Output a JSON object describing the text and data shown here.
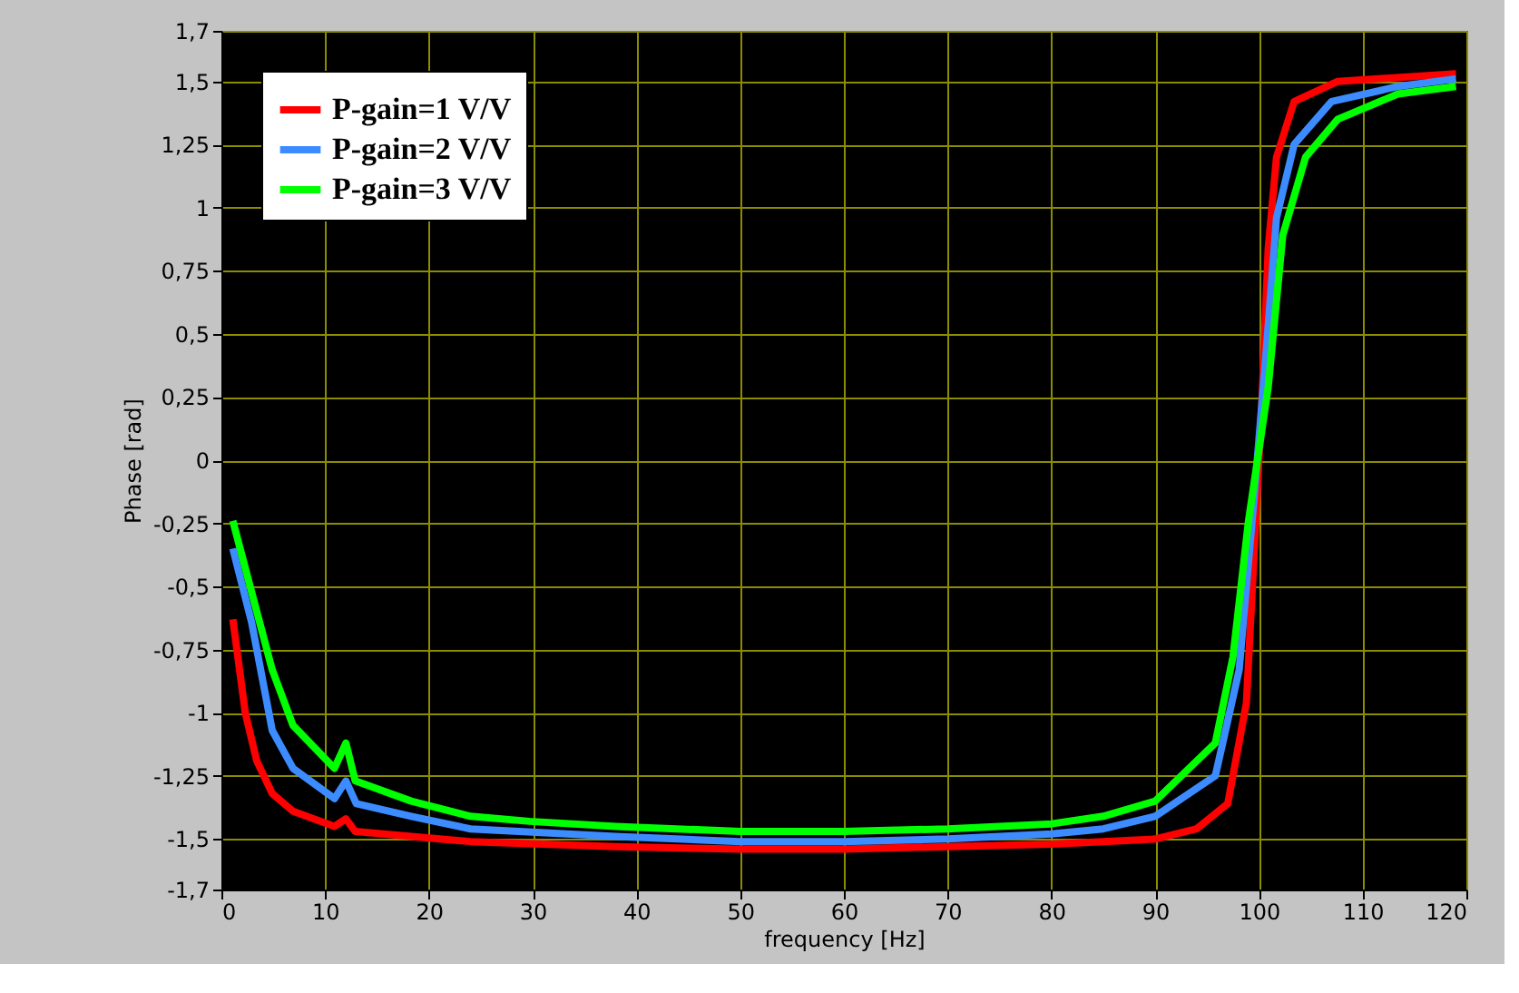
{
  "chart_data": {
    "type": "line",
    "xlabel": "frequency [Hz]",
    "ylabel": "Phase [rad]",
    "xlim": [
      0,
      120
    ],
    "xticks": [
      0,
      10,
      20,
      30,
      40,
      50,
      60,
      70,
      80,
      90,
      100,
      110,
      120
    ],
    "ylim": [
      -1.7,
      1.7
    ],
    "yticks": [
      {
        "value": -1.7,
        "label": "-1,7"
      },
      {
        "value": -1.5,
        "label": "-1,5"
      },
      {
        "value": -1.25,
        "label": "-1,25"
      },
      {
        "value": -1,
        "label": "-1"
      },
      {
        "value": -0.75,
        "label": "-0,75"
      },
      {
        "value": -0.5,
        "label": "-0,5"
      },
      {
        "value": -0.25,
        "label": "-0,25"
      },
      {
        "value": 0,
        "label": "0"
      },
      {
        "value": 0.25,
        "label": "0,25"
      },
      {
        "value": 0.5,
        "label": "0,5"
      },
      {
        "value": 0.75,
        "label": "0,75"
      },
      {
        "value": 1,
        "label": "1"
      },
      {
        "value": 1.25,
        "label": "1,25"
      },
      {
        "value": 1.5,
        "label": "1,5"
      },
      {
        "value": 1.7,
        "label": "1,7"
      }
    ],
    "grid": true,
    "legend": "top left",
    "marker": "none",
    "line_style": "solid",
    "series": [
      {
        "name": "P-gain=1 V/V",
        "color": "#ff0000",
        "x": [
          1.1,
          2.3,
          3.4,
          4.9,
          6.9,
          10.9,
          12,
          12.9,
          18.3,
          24,
          38,
          50,
          60,
          70,
          80,
          85,
          90,
          94,
          97,
          98.8,
          99.7,
          100.3,
          100.9,
          101.7,
          103.4,
          107.6,
          119
        ],
        "values": [
          -0.63,
          -1.0,
          -1.19,
          -1.32,
          -1.39,
          -1.45,
          -1.42,
          -1.47,
          -1.49,
          -1.51,
          -1.53,
          -1.54,
          -1.54,
          -1.53,
          -1.52,
          -1.51,
          -1.5,
          -1.46,
          -1.36,
          -0.96,
          -0.24,
          0.24,
          0.84,
          1.2,
          1.42,
          1.5,
          1.53
        ]
      },
      {
        "name": "P-gain=2 V/V",
        "color": "#3c8cff",
        "x": [
          1.1,
          2.9,
          4.9,
          6.9,
          10.9,
          12,
          13,
          18.3,
          24,
          38,
          50,
          60,
          70,
          80,
          85,
          90,
          95.8,
          98.1,
          99.6,
          100.8,
          101.7,
          103.4,
          107,
          113.4,
          119
        ],
        "values": [
          -0.35,
          -0.64,
          -1.07,
          -1.22,
          -1.34,
          -1.27,
          -1.36,
          -1.41,
          -1.46,
          -1.49,
          -1.51,
          -1.51,
          -1.5,
          -1.48,
          -1.46,
          -1.41,
          -1.25,
          -0.83,
          -0.12,
          0.48,
          0.96,
          1.25,
          1.42,
          1.48,
          1.51
        ]
      },
      {
        "name": "P-gain=3 V/V",
        "color": "#00ff00",
        "x": [
          1.1,
          2.9,
          4.9,
          6.9,
          10.9,
          12,
          12.9,
          18.3,
          24,
          29.7,
          38,
          50,
          60,
          70,
          80,
          85,
          90,
          95.8,
          97.5,
          99,
          100.9,
          102.3,
          104.5,
          107.6,
          113.4,
          119
        ],
        "values": [
          -0.24,
          -0.52,
          -0.83,
          -1.05,
          -1.22,
          -1.12,
          -1.27,
          -1.35,
          -1.41,
          -1.43,
          -1.45,
          -1.47,
          -1.47,
          -1.46,
          -1.44,
          -1.41,
          -1.35,
          -1.12,
          -0.78,
          -0.24,
          0.29,
          0.89,
          1.2,
          1.35,
          1.45,
          1.48
        ]
      }
    ]
  }
}
